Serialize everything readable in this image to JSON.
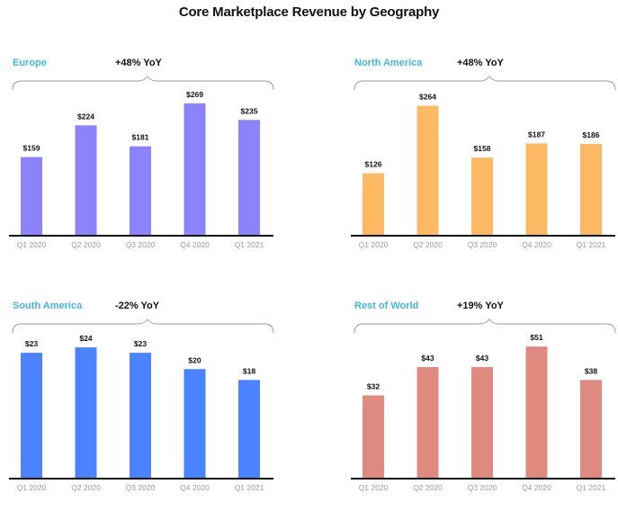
{
  "title": "Core Marketplace Revenue by Geography",
  "chart_data": [
    {
      "type": "bar",
      "region": "Europe",
      "yoy": "+48% YoY",
      "color": "#8c82fc",
      "categories": [
        "Q1 2020",
        "Q2 2020",
        "Q3 2020",
        "Q4 2020",
        "Q1 2021"
      ],
      "values": [
        159,
        224,
        181,
        269,
        235
      ],
      "labels": [
        "$159",
        "$224",
        "$181",
        "$269",
        "$235"
      ],
      "ylim": [
        0,
        300
      ]
    },
    {
      "type": "bar",
      "region": "North America",
      "yoy": "+48% YoY",
      "color": "#fdb863",
      "categories": [
        "Q1 2020",
        "Q2 2020",
        "Q3 2020",
        "Q4 2020",
        "Q1 2021"
      ],
      "values": [
        126,
        264,
        158,
        187,
        186
      ],
      "labels": [
        "$126",
        "$264",
        "$158",
        "$187",
        "$186"
      ],
      "ylim": [
        0,
        300
      ]
    },
    {
      "type": "bar",
      "region": "South America",
      "yoy": "-22% YoY",
      "color": "#4a82ff",
      "categories": [
        "Q1 2020",
        "Q2 2020",
        "Q3 2020",
        "Q4 2020",
        "Q1 2021"
      ],
      "values": [
        23,
        24,
        23,
        20,
        18
      ],
      "labels": [
        "$23",
        "$24",
        "$23",
        "$20",
        "$18"
      ],
      "ylim": [
        0,
        27
      ]
    },
    {
      "type": "bar",
      "region": "Rest of World",
      "yoy": "+19% YoY",
      "color": "#df8a7e",
      "categories": [
        "Q1 2020",
        "Q2 2020",
        "Q3 2020",
        "Q4 2020",
        "Q1 2021"
      ],
      "values": [
        32,
        43,
        43,
        51,
        38
      ],
      "labels": [
        "$32",
        "$43",
        "$43",
        "$51",
        "$38"
      ],
      "ylim": [
        0,
        57
      ]
    }
  ]
}
